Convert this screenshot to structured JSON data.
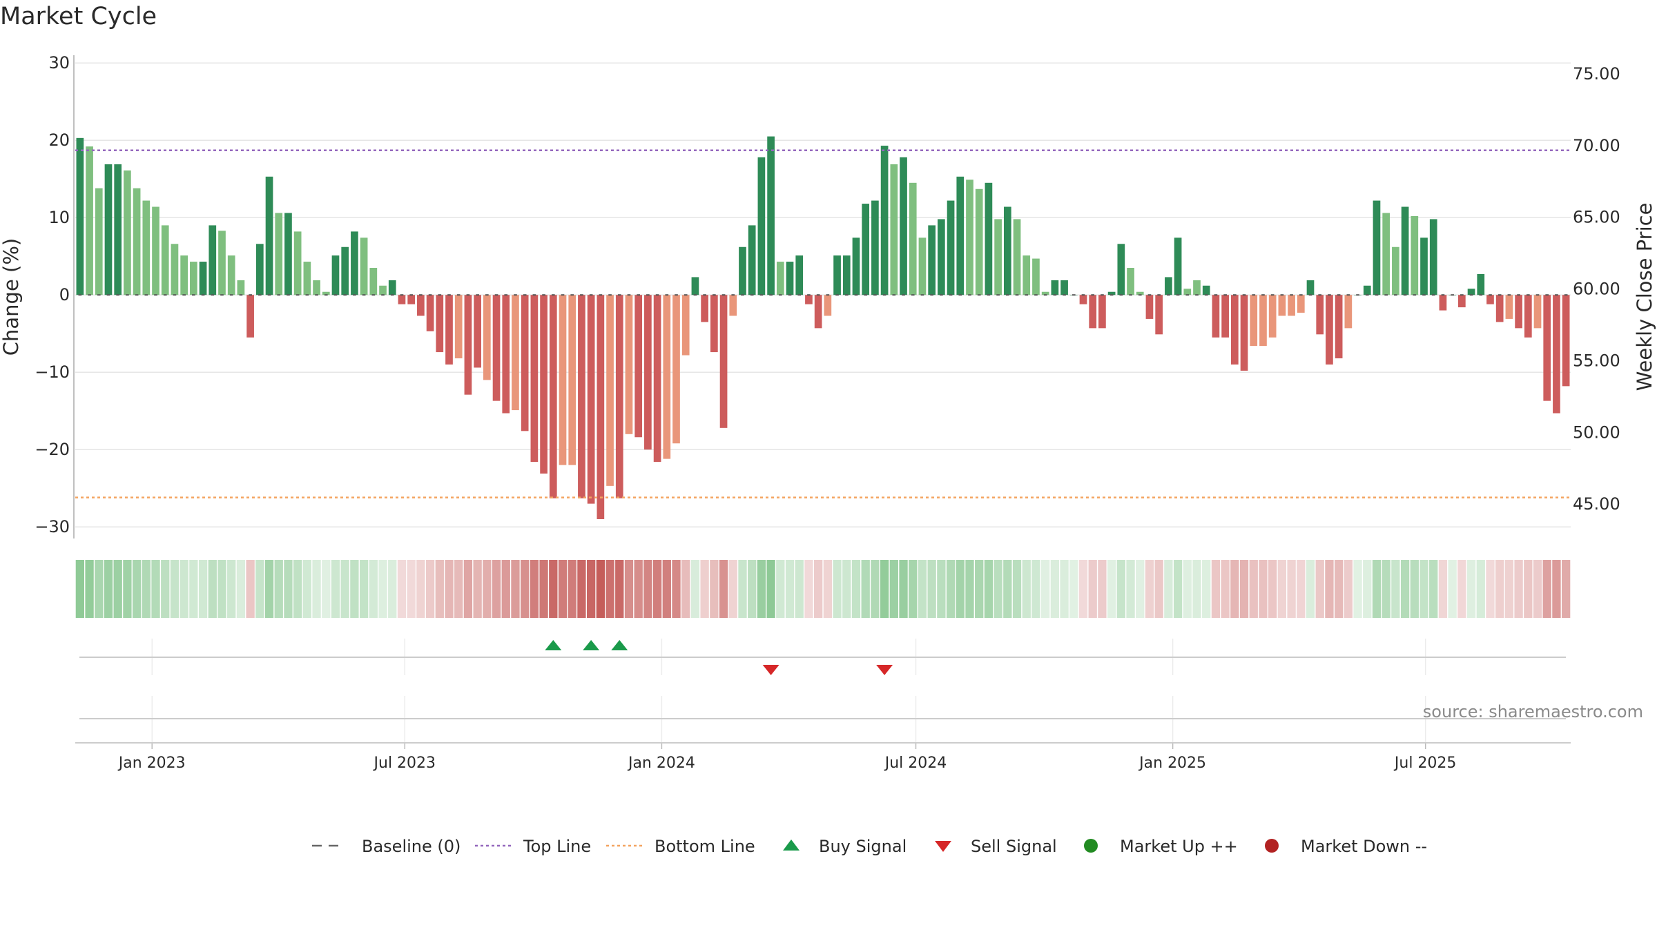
{
  "title": "Market Cycle",
  "source_text": "source: sharemaestro.com",
  "colors": {
    "up_strong": "#2e8b57",
    "up_light": "#7fbf7f",
    "down_strong": "#cd5c5c",
    "down_light": "#e9967a",
    "top_line": "#9467bd",
    "bottom_line": "#f4a460",
    "buy": "#1a9a4a",
    "sell": "#d62728",
    "market_up": "#228b22",
    "market_down": "#b22222",
    "grid": "#e6e6e6"
  },
  "chart_data": {
    "type": "bar",
    "title": "Market Cycle",
    "ylabel": "Change (%)",
    "y2label": "Weekly Close Price",
    "ylim": [
      -31.5,
      31
    ],
    "yticks": [
      30,
      20,
      10,
      0,
      -10,
      -20,
      -30
    ],
    "y2lim": [
      42.6,
      76.3
    ],
    "y2ticks": [
      "75.00",
      "70.00",
      "65.00",
      "60.00",
      "55.00",
      "50.00",
      "45.00"
    ],
    "top_line": 18.7,
    "bottom_line": -26.2,
    "x_start": "2022-11-07",
    "x_end": "2025-10-13",
    "date_ticks": [
      {
        "date": "2023-01-01",
        "label": "Jan 2023"
      },
      {
        "date": "2023-07-01",
        "label": "Jul 2023"
      },
      {
        "date": "2024-01-01",
        "label": "Jan 2024"
      },
      {
        "date": "2024-07-01",
        "label": "Jul 2024"
      },
      {
        "date": "2025-01-01",
        "label": "Jan 2025"
      },
      {
        "date": "2025-07-01",
        "label": "Jul 2025"
      }
    ],
    "values": [
      20.3,
      19.2,
      13.8,
      16.9,
      16.9,
      16.1,
      13.8,
      12.2,
      11.4,
      9.0,
      6.6,
      5.1,
      4.3,
      4.3,
      9.0,
      8.3,
      5.1,
      1.9,
      -5.5,
      6.6,
      15.3,
      10.6,
      10.6,
      8.2,
      4.3,
      1.9,
      0.4,
      5.1,
      6.2,
      8.2,
      7.4,
      3.5,
      1.2,
      1.9,
      -1.2,
      -1.2,
      -2.7,
      -4.7,
      -7.4,
      -9.0,
      -8.2,
      -12.9,
      -9.4,
      -11.0,
      -13.7,
      -15.3,
      -14.9,
      -17.6,
      -21.6,
      -23.1,
      -26.3,
      -22.0,
      -22.0,
      -26.3,
      -27.0,
      -29.0,
      -24.7,
      -26.3,
      -18.0,
      -18.4,
      -20.0,
      -21.6,
      -21.2,
      -19.2,
      -7.8,
      2.3,
      -3.5,
      -7.4,
      -17.2,
      -2.7,
      6.2,
      9.0,
      17.8,
      20.5,
      4.3,
      4.3,
      5.1,
      -1.2,
      -4.3,
      -2.7,
      5.1,
      5.1,
      7.4,
      11.8,
      12.2,
      19.3,
      16.9,
      17.8,
      14.5,
      7.4,
      9.0,
      9.8,
      12.2,
      15.3,
      14.9,
      13.7,
      14.5,
      9.8,
      11.4,
      9.8,
      5.1,
      4.7,
      0.4,
      1.9,
      1.9,
      0.0,
      -1.2,
      -4.3,
      -4.3,
      0.4,
      6.6,
      3.5,
      0.4,
      -3.1,
      -5.1,
      2.3,
      7.4,
      0.8,
      1.9,
      1.2,
      -5.5,
      -5.5,
      -9.0,
      -9.8,
      -6.6,
      -6.6,
      -5.5,
      -2.7,
      -2.7,
      -2.3,
      1.9,
      -5.1,
      -9.0,
      -8.2,
      -4.3,
      0.0,
      1.2,
      12.2,
      10.6,
      6.2,
      11.4,
      10.2,
      7.4,
      9.8,
      -2.0,
      0.0,
      -1.6,
      0.8,
      2.7,
      -1.2,
      -3.5,
      -3.1,
      -4.3,
      -5.5,
      -4.3,
      -13.7,
      -15.3,
      -11.8
    ],
    "strong": [
      1,
      0,
      0,
      1,
      1,
      0,
      0,
      0,
      0,
      0,
      0,
      0,
      0,
      1,
      1,
      0,
      0,
      0,
      1,
      1,
      1,
      0,
      1,
      0,
      0,
      0,
      0,
      1,
      1,
      1,
      0,
      0,
      0,
      1,
      1,
      1,
      1,
      1,
      1,
      1,
      0,
      1,
      1,
      0,
      1,
      1,
      0,
      1,
      1,
      1,
      1,
      0,
      0,
      1,
      1,
      1,
      0,
      1,
      0,
      1,
      1,
      1,
      0,
      0,
      0,
      1,
      1,
      1,
      1,
      0,
      1,
      1,
      1,
      1,
      0,
      1,
      1,
      1,
      1,
      0,
      1,
      1,
      1,
      1,
      1,
      1,
      0,
      1,
      0,
      0,
      1,
      1,
      1,
      1,
      0,
      0,
      1,
      0,
      1,
      0,
      0,
      0,
      0,
      1,
      1,
      1,
      1,
      1,
      1,
      1,
      1,
      0,
      0,
      1,
      1,
      1,
      1,
      0,
      0,
      1,
      1,
      1,
      1,
      1,
      0,
      0,
      0,
      0,
      0,
      0,
      1,
      1,
      1,
      1,
      0,
      1,
      1,
      1,
      0,
      0,
      1,
      0,
      1,
      1,
      1,
      1,
      1,
      1,
      1,
      1,
      1,
      0,
      1,
      1,
      0,
      1,
      1,
      1,
      0
    ],
    "buy_signals": [
      50,
      54,
      57
    ],
    "sell_signals": [
      73,
      85
    ]
  },
  "legend": [
    {
      "label": "Baseline (0)",
      "icon": "dash-line",
      "color": "#666666"
    },
    {
      "label": "Top Line",
      "icon": "dotted-line",
      "color": "#9467bd"
    },
    {
      "label": "Bottom Line",
      "icon": "dotted-line",
      "color": "#f4a460"
    },
    {
      "label": "Buy Signal",
      "icon": "triangle-up",
      "color": "#1a9a4a"
    },
    {
      "label": "Sell Signal",
      "icon": "triangle-down",
      "color": "#d62728"
    },
    {
      "label": "Market Up ++",
      "icon": "circle",
      "color": "#228b22"
    },
    {
      "label": "Market Down --",
      "icon": "circle",
      "color": "#b22222"
    }
  ]
}
